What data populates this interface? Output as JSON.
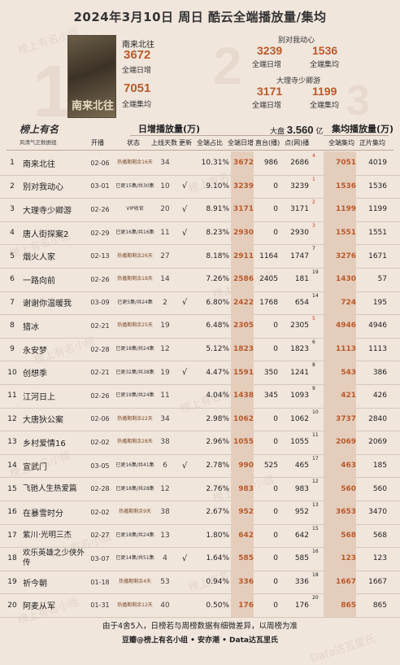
{
  "title": "2024年3月10日 周日 酷云全端播放量/集均",
  "podium": {
    "first": {
      "name": "南来北往",
      "daily": "3672",
      "daily_label": "全端日增",
      "avg": "7051",
      "avg_label": "全端集均",
      "poster_text": "南来北往"
    },
    "second": {
      "name": "别对我动心",
      "daily": "3239",
      "daily_label": "全端日增",
      "avg": "1536",
      "avg_label": "全端集均"
    },
    "third": {
      "name": "大理寺少卿游",
      "daily": "3171",
      "daily_label": "全端日增",
      "avg": "1199",
      "avg_label": "全端集均"
    },
    "big_numbers": [
      "1",
      "2",
      "3"
    ]
  },
  "logo": {
    "name": "榜上有名",
    "sub": "风清气正数据组"
  },
  "header": {
    "daily_group": "日增播放量(万)",
    "dapan_label": "大盘",
    "dapan_value": "3.560",
    "dapan_unit": "亿",
    "avg_group": "集均播放量(万)",
    "cols": [
      "开播",
      "状态",
      "上线天数",
      "更新",
      "全端占比",
      "全端日增",
      "直台(播)",
      "点(网)播",
      "全端集均",
      "正片集均"
    ]
  },
  "rows": [
    {
      "rank": "1",
      "name": "南来北往",
      "date": "02-06",
      "status": "热播期剩余16天",
      "days": "34",
      "upd": "",
      "share": "10.31%",
      "total": "3672",
      "zhi": "986",
      "dian": "2686",
      "chg": "4",
      "chg_color": "#c0392b",
      "all": "7051",
      "ep": "4019",
      "hl": true
    },
    {
      "rank": "2",
      "name": "别对我动心",
      "date": "03-01",
      "status": "已更15集/共30集",
      "days": "10",
      "upd": "√",
      "share": "9.10%",
      "total": "3239",
      "zhi": "0",
      "dian": "3239",
      "chg": "1",
      "chg_color": "#c0392b",
      "all": "1536",
      "ep": "1536",
      "hl": true
    },
    {
      "rank": "3",
      "name": "大理寺少卿游",
      "date": "02-26",
      "status": "VIP收官",
      "days": "20",
      "upd": "√",
      "share": "8.91%",
      "total": "3171",
      "zhi": "0",
      "dian": "3171",
      "chg": "2",
      "chg_color": "#c0392b",
      "all": "1199",
      "ep": "1199",
      "hl": true
    },
    {
      "rank": "4",
      "name": "唐人街探案2",
      "date": "02-29",
      "status": "已更16集/共16集",
      "days": "11",
      "upd": "√",
      "share": "8.23%",
      "total": "2930",
      "zhi": "0",
      "dian": "2930",
      "chg": "3",
      "chg_color": "#c0392b",
      "all": "1551",
      "ep": "1551",
      "hl": true
    },
    {
      "rank": "5",
      "name": "烟火人家",
      "date": "02-13",
      "status": "热播期剩余26天",
      "days": "27",
      "upd": "",
      "share": "8.18%",
      "total": "2911",
      "zhi": "1164",
      "dian": "1747",
      "chg": "7",
      "chg_color": "#222",
      "all": "3276",
      "ep": "1671",
      "hl": true
    },
    {
      "rank": "6",
      "name": "一路向前",
      "date": "02-26",
      "status": "热播期剩余18天",
      "days": "14",
      "upd": "",
      "share": "7.26%",
      "total": "2586",
      "zhi": "2405",
      "dian": "181",
      "chg": "19",
      "chg_color": "#222",
      "all": "1430",
      "ep": "57",
      "hl": true
    },
    {
      "rank": "7",
      "name": "谢谢你温暖我",
      "date": "03-09",
      "status": "已更5集/共24集",
      "days": "2",
      "upd": "√",
      "share": "6.80%",
      "total": "2422",
      "zhi": "1768",
      "dian": "654",
      "chg": "14",
      "chg_color": "#222",
      "all": "724",
      "ep": "195",
      "hl": true
    },
    {
      "rank": "8",
      "name": "猎冰",
      "date": "02-21",
      "status": "热播期剩余25天",
      "days": "19",
      "upd": "",
      "share": "6.48%",
      "total": "2305",
      "zhi": "0",
      "dian": "2305",
      "chg": "5",
      "chg_color": "#c0392b",
      "all": "4946",
      "ep": "4946",
      "hl": true
    },
    {
      "rank": "9",
      "name": "永安梦",
      "date": "02-28",
      "status": "已更18集/共24集",
      "days": "12",
      "upd": "",
      "share": "5.12%",
      "total": "1823",
      "zhi": "0",
      "dian": "1823",
      "chg": "6",
      "chg_color": "#222",
      "all": "1113",
      "ep": "1113",
      "hl": true
    },
    {
      "rank": "10",
      "name": "创想季",
      "date": "02-21",
      "status": "已更32集/共38集",
      "days": "19",
      "upd": "√",
      "share": "4.47%",
      "total": "1591",
      "zhi": "350",
      "dian": "1241",
      "chg": "8",
      "chg_color": "#222",
      "all": "543",
      "ep": "386",
      "hl": true
    },
    {
      "rank": "11",
      "name": "江河日上",
      "date": "02-26",
      "status": "已更19集/共24集",
      "days": "11",
      "upd": "",
      "share": "4.04%",
      "total": "1438",
      "zhi": "345",
      "dian": "1093",
      "chg": "9",
      "chg_color": "#222",
      "all": "421",
      "ep": "426",
      "hl": true
    },
    {
      "rank": "12",
      "name": "大唐狄公案",
      "date": "02-06",
      "status": "热播期剩余22天",
      "days": "34",
      "upd": "",
      "share": "2.98%",
      "total": "1062",
      "zhi": "0",
      "dian": "1062",
      "chg": "10",
      "chg_color": "#222",
      "all": "3737",
      "ep": "2840",
      "hl": true
    },
    {
      "rank": "13",
      "name": "乡村爱情16",
      "date": "02-02",
      "status": "热播期剩余28天",
      "days": "38",
      "upd": "",
      "share": "2.96%",
      "total": "1055",
      "zhi": "0",
      "dian": "1055",
      "chg": "11",
      "chg_color": "#222",
      "all": "2069",
      "ep": "2069",
      "hl": true
    },
    {
      "rank": "14",
      "name": "宣武门",
      "date": "03-05",
      "status": "已更16集/共41集",
      "days": "6",
      "upd": "√",
      "share": "2.78%",
      "total": "990",
      "zhi": "525",
      "dian": "465",
      "chg": "17",
      "chg_color": "#222",
      "all": "463",
      "ep": "185",
      "hl": true
    },
    {
      "rank": "15",
      "name": "飞驰人生热爱篇",
      "date": "02-28",
      "status": "已更18集/共28集",
      "days": "12",
      "upd": "",
      "share": "2.76%",
      "total": "983",
      "zhi": "0",
      "dian": "983",
      "chg": "12",
      "chg_color": "#222",
      "all": "560",
      "ep": "560",
      "hl": true
    },
    {
      "rank": "16",
      "name": "在暴雪时分",
      "date": "02-02",
      "status": "热播期剩余9天",
      "days": "38",
      "upd": "",
      "share": "2.67%",
      "total": "952",
      "zhi": "0",
      "dian": "952",
      "chg": "13",
      "chg_color": "#222",
      "all": "3653",
      "ep": "3470",
      "hl": true
    },
    {
      "rank": "17",
      "name": "紫川·光明三杰",
      "date": "02-27",
      "status": "已更18集/共24集",
      "days": "13",
      "upd": "",
      "share": "1.80%",
      "total": "642",
      "zhi": "0",
      "dian": "642",
      "chg": "15",
      "chg_color": "#222",
      "all": "568",
      "ep": "568",
      "hl": true
    },
    {
      "rank": "18",
      "name": "欢乐英雄之少侠外传",
      "date": "03-07",
      "status": "已更14集/共51集",
      "days": "4",
      "upd": "√",
      "share": "1.64%",
      "total": "585",
      "zhi": "0",
      "dian": "585",
      "chg": "16",
      "chg_color": "#222",
      "all": "123",
      "ep": "123",
      "hl": true
    },
    {
      "rank": "19",
      "name": "祈今朝",
      "date": "01-18",
      "status": "热播期剩余4天",
      "days": "53",
      "upd": "",
      "share": "0.94%",
      "total": "336",
      "zhi": "0",
      "dian": "336",
      "chg": "18",
      "chg_color": "#222",
      "all": "1667",
      "ep": "1667",
      "hl": true
    },
    {
      "rank": "20",
      "name": "阿麦从军",
      "date": "01-31",
      "status": "热播期剩余12天",
      "days": "40",
      "upd": "",
      "share": "0.50%",
      "total": "176",
      "zhi": "0",
      "dian": "176",
      "chg": "20",
      "chg_color": "#222",
      "all": "865",
      "ep": "865",
      "hl": true
    }
  ],
  "footer": {
    "note": "由于4舍5入，日榜若与周榜数据有细微差异，以周榜为准",
    "credits": "豆瓣@榜上有名小组 • 安亦潮 • Data达瓦里氏"
  },
  "watermarks": [
    "榜上有名小组",
    "榜上有名小组",
    "榜上有名小组",
    "榜上有名小组",
    "榜上有名小组",
    "榜上有名小组",
    "榜上有名小组",
    "榜上有名小组",
    "榜上有名小组",
    "榜上有名小组",
    "榜上有名小组",
    "Data达瓦里氏"
  ]
}
